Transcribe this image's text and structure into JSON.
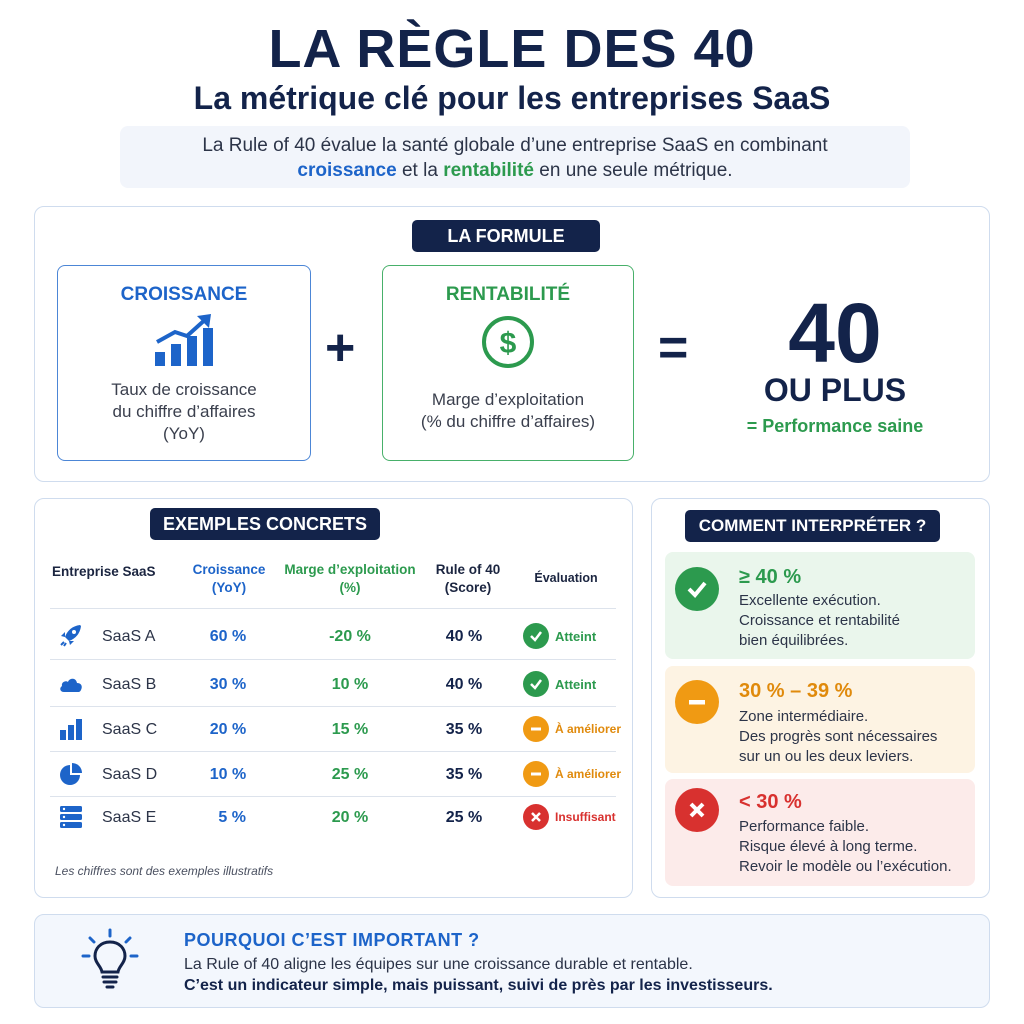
{
  "header": {
    "title": "LA RÈGLE DES 40",
    "subtitle": "La métrique clé pour les entreprises SaaS",
    "intro_line1": "La Rule of 40 évalue la santé globale d’une entreprise SaaS en combinant",
    "intro_word_growth": "croissance",
    "intro_mid": " et la ",
    "intro_word_profit": "rentabilité",
    "intro_end": " en une seule métrique."
  },
  "formula": {
    "label": "LA FORMULE",
    "growth_title": "CROISSANCE",
    "growth_desc": [
      "Taux de croissance",
      "du chiffre d’affaires",
      "(YoY)"
    ],
    "profit_title": "RENTABILITÉ",
    "profit_desc": [
      "Marge d’exploitation",
      "(% du chiffre d’affaires)"
    ],
    "plus": "+",
    "equals": "=",
    "result_value": "40",
    "result_suffix": "OU PLUS",
    "result_note": "= Performance saine"
  },
  "examples": {
    "label": "EXEMPLES CONCRETS",
    "columns": [
      "Entreprise SaaS",
      "Croissance (YoY)",
      "Marge d’exploitation (%)",
      "Rule of 40 (Score)",
      "Évaluation"
    ],
    "col_growth_l1": "Croissance",
    "col_growth_l2": "(YoY)",
    "col_margin_l1": "Marge d’exploitation",
    "col_margin_l2": "(%)",
    "col_score_l1": "Rule of 40",
    "col_score_l2": "(Score)",
    "rows": [
      {
        "icon": "rocket-icon",
        "name": "SaaS A",
        "growth": "60 %",
        "margin": "-20 %",
        "score": "40 %",
        "status": "Atteint",
        "level": "good"
      },
      {
        "icon": "cloud-icon",
        "name": "SaaS B",
        "growth": "30 %",
        "margin": "10 %",
        "score": "40 %",
        "status": "Atteint",
        "level": "good"
      },
      {
        "icon": "bar-chart-icon",
        "name": "SaaS C",
        "growth": "20 %",
        "margin": "15 %",
        "score": "35 %",
        "status": "À améliorer",
        "level": "mid"
      },
      {
        "icon": "pie-chart-icon",
        "name": "SaaS D",
        "growth": "10 %",
        "margin": "25 %",
        "score": "35 %",
        "status": "À améliorer",
        "level": "mid"
      },
      {
        "icon": "server-icon",
        "name": "SaaS E",
        "growth": "5 %",
        "margin": "20 %",
        "score": "25 %",
        "status": "Insuffisant",
        "level": "bad"
      }
    ],
    "note": "Les chiffres sont des exemples illustratifs"
  },
  "interpret": {
    "label": "COMMENT INTERPRÉTER ?",
    "items": [
      {
        "range": "≥ 40 %",
        "lines": [
          "Excellente exécution.",
          "Croissance et rentabilité",
          "bien équilibrées."
        ],
        "level": "good"
      },
      {
        "range": "30 % – 39 %",
        "lines": [
          "Zone intermédiaire.",
          "Des progrès sont nécessaires",
          "sur un ou les deux leviers."
        ],
        "level": "mid"
      },
      {
        "range": "< 30 %",
        "lines": [
          "Performance faible.",
          "Risque élevé à long terme.",
          "Revoir le modèle ou l’exécution."
        ],
        "level": "bad"
      }
    ]
  },
  "why": {
    "title": "POURQUOI C’EST IMPORTANT ?",
    "line1": "La Rule of 40 aligne les équipes sur une croissance durable et rentable.",
    "line2": "C’est un indicateur simple, mais puissant, suivi de près par les investisseurs."
  },
  "colors": {
    "navy": "#13234a",
    "blue": "#1d64c9",
    "green": "#2c9a4e",
    "orange": "#f09a13",
    "red": "#d8312f"
  }
}
